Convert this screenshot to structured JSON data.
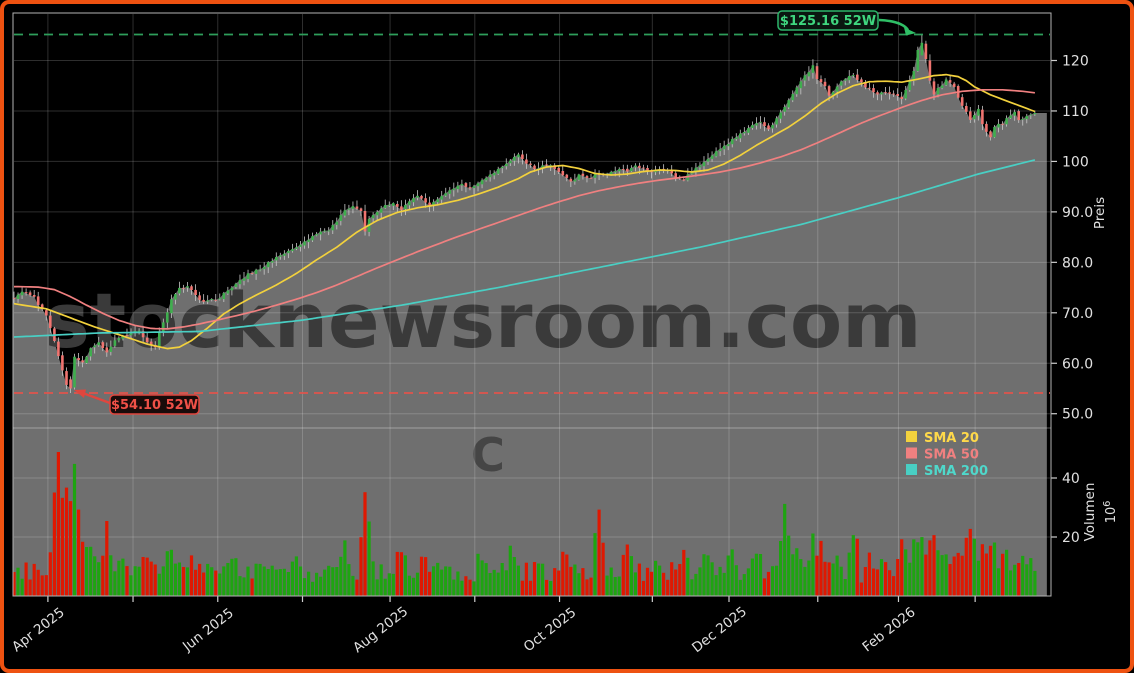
{
  "chart_data": {
    "type": "candlestick",
    "site_watermark": "stocknewsroom.com",
    "ticker_watermark": "C",
    "price_axis_label": "Preis",
    "volume_axis_label": "Volumen",
    "volume_unit_base": "10",
    "volume_unit_exponent": "6",
    "price_tick_labels": [
      "120",
      "110",
      "100",
      "90.0",
      "80.0",
      "70.0",
      "60.0",
      "50.0"
    ],
    "price_tick_values": [
      120,
      110,
      100,
      90,
      80,
      70,
      60,
      50
    ],
    "volume_tick_labels": [
      "40",
      "20"
    ],
    "volume_tick_values": [
      40,
      20
    ],
    "month_ticks": [
      {
        "i": 8.4,
        "label": "Apr 2025"
      },
      {
        "i": 29.5,
        "label": null
      },
      {
        "i": 50.5,
        "label": "Jun 2025"
      },
      {
        "i": 71.5,
        "label": null
      },
      {
        "i": 93.2,
        "label": "Aug 2025"
      },
      {
        "i": 114.2,
        "label": null
      },
      {
        "i": 135.2,
        "label": "Oct 2025"
      },
      {
        "i": 158.2,
        "label": null
      },
      {
        "i": 177.2,
        "label": "Dec 2025"
      },
      {
        "i": 199.2,
        "label": null
      },
      {
        "i": 219.2,
        "label": "Feb 2026"
      },
      {
        "i": 238.2,
        "label": null
      }
    ],
    "high_52w": 125.16,
    "low_52w": 54.1,
    "high_label": "$125.16 52W",
    "low_label": "$54.10 52W",
    "legend": [
      {
        "label": "SMA 20",
        "color": "#f2d13d",
        "text_color": "#ffd94a"
      },
      {
        "label": "SMA 50",
        "color": "#f08080",
        "text_color": "#f08080"
      },
      {
        "label": "SMA 200",
        "color": "#49cfc4",
        "text_color": "#4fd8cb"
      }
    ],
    "ylim_price": [
      47.0,
      129.3
    ],
    "ylim_volume": [
      0,
      57
    ],
    "n_candles": 254,
    "close_anchors": [
      [
        0,
        73.0
      ],
      [
        2,
        74.3
      ],
      [
        5,
        73.3
      ],
      [
        6,
        71.5
      ],
      [
        8,
        69.5
      ],
      [
        10,
        64.5
      ],
      [
        12,
        58.5
      ],
      [
        13,
        55.5
      ],
      [
        14,
        55.0
      ],
      [
        15,
        61.0
      ],
      [
        17,
        60.0
      ],
      [
        19,
        62.8
      ],
      [
        21,
        64.0
      ],
      [
        23,
        62.0
      ],
      [
        25,
        64.5
      ],
      [
        27,
        65.5
      ],
      [
        29,
        66.0
      ],
      [
        31,
        66.5
      ],
      [
        33,
        64.2
      ],
      [
        35,
        63.2
      ],
      [
        36,
        66.0
      ],
      [
        38,
        70.0
      ],
      [
        39,
        72.8
      ],
      [
        41,
        74.8
      ],
      [
        43,
        75.2
      ],
      [
        45,
        73.5
      ],
      [
        47,
        72.0
      ],
      [
        49,
        72.5
      ],
      [
        51,
        73.0
      ],
      [
        54,
        75.0
      ],
      [
        56,
        76.3
      ],
      [
        58,
        77.8
      ],
      [
        61,
        78.6
      ],
      [
        63,
        80.0
      ],
      [
        66,
        81.3
      ],
      [
        68,
        82.3
      ],
      [
        71,
        83.3
      ],
      [
        73,
        84.5
      ],
      [
        76,
        86.0
      ],
      [
        78,
        86.5
      ],
      [
        80,
        88.0
      ],
      [
        82,
        90.5
      ],
      [
        84,
        91.3
      ],
      [
        86,
        90.3
      ],
      [
        87,
        85.9
      ],
      [
        88,
        88.5
      ],
      [
        90,
        90.2
      ],
      [
        92,
        91.3
      ],
      [
        94,
        91.8
      ],
      [
        96,
        90.4
      ],
      [
        98,
        92.0
      ],
      [
        100,
        93.2
      ],
      [
        102,
        92.0
      ],
      [
        103,
        91.0
      ],
      [
        105,
        92.5
      ],
      [
        107,
        93.6
      ],
      [
        109,
        94.6
      ],
      [
        111,
        95.6
      ],
      [
        113,
        94.6
      ],
      [
        115,
        95.6
      ],
      [
        117,
        96.8
      ],
      [
        119,
        97.8
      ],
      [
        121,
        98.8
      ],
      [
        123,
        100.3
      ],
      [
        125,
        101.3
      ],
      [
        127,
        99.8
      ],
      [
        129,
        98.5
      ],
      [
        131,
        99.0
      ],
      [
        133,
        99.3
      ],
      [
        135,
        98.0
      ],
      [
        137,
        96.5
      ],
      [
        138,
        96.0
      ],
      [
        140,
        97.2
      ],
      [
        142,
        96.6
      ],
      [
        144,
        97.2
      ],
      [
        146,
        97.5
      ],
      [
        148,
        97.9
      ],
      [
        150,
        98.5
      ],
      [
        152,
        98.1
      ],
      [
        154,
        99.0
      ],
      [
        156,
        98.6
      ],
      [
        158,
        98.0
      ],
      [
        160,
        98.5
      ],
      [
        162,
        98.2
      ],
      [
        164,
        96.8
      ],
      [
        166,
        96.4
      ],
      [
        168,
        98.0
      ],
      [
        170,
        99.0
      ],
      [
        172,
        100.6
      ],
      [
        174,
        101.8
      ],
      [
        176,
        103.0
      ],
      [
        178,
        104.2
      ],
      [
        179,
        105.0
      ],
      [
        181,
        106.0
      ],
      [
        183,
        107.0
      ],
      [
        185,
        107.8
      ],
      [
        187,
        106.6
      ],
      [
        188,
        107.4
      ],
      [
        190,
        109.5
      ],
      [
        192,
        112.0
      ],
      [
        194,
        114.5
      ],
      [
        196,
        117.0
      ],
      [
        198,
        118.8
      ],
      [
        199,
        116.5
      ],
      [
        201,
        114.8
      ],
      [
        202,
        112.8
      ],
      [
        204,
        115.0
      ],
      [
        206,
        116.5
      ],
      [
        208,
        117.2
      ],
      [
        210,
        115.5
      ],
      [
        212,
        114.3
      ],
      [
        214,
        113.3
      ],
      [
        216,
        113.8
      ],
      [
        218,
        113.3
      ],
      [
        220,
        112.3
      ],
      [
        221,
        114.0
      ],
      [
        223,
        118.0
      ],
      [
        224,
        122.0
      ],
      [
        225,
        123.5
      ],
      [
        226,
        120.5
      ],
      [
        227,
        116.0
      ],
      [
        228,
        113.5
      ],
      [
        230,
        115.2
      ],
      [
        231,
        116.2
      ],
      [
        233,
        115.0
      ],
      [
        234,
        112.5
      ],
      [
        236,
        110.0
      ],
      [
        237,
        108.3
      ],
      [
        239,
        110.3
      ],
      [
        240,
        107.3
      ],
      [
        242,
        104.8
      ],
      [
        243,
        107.0
      ],
      [
        245,
        107.5
      ],
      [
        246,
        108.8
      ],
      [
        248,
        109.8
      ],
      [
        249,
        108.3
      ],
      [
        251,
        108.8
      ],
      [
        253,
        109.8
      ]
    ],
    "sma20_anchors": [
      [
        0,
        71.8
      ],
      [
        8,
        70.8
      ],
      [
        14,
        69.0
      ],
      [
        20,
        67.2
      ],
      [
        27,
        65.4
      ],
      [
        33,
        63.8
      ],
      [
        38,
        62.9
      ],
      [
        41,
        63.2
      ],
      [
        44,
        64.5
      ],
      [
        48,
        67.0
      ],
      [
        52,
        69.8
      ],
      [
        56,
        71.8
      ],
      [
        60,
        73.5
      ],
      [
        65,
        75.5
      ],
      [
        70,
        77.8
      ],
      [
        75,
        80.5
      ],
      [
        80,
        83.0
      ],
      [
        85,
        86.0
      ],
      [
        90,
        88.3
      ],
      [
        95,
        89.9
      ],
      [
        100,
        90.8
      ],
      [
        105,
        91.4
      ],
      [
        110,
        92.3
      ],
      [
        115,
        93.5
      ],
      [
        120,
        94.9
      ],
      [
        125,
        96.6
      ],
      [
        128,
        97.9
      ],
      [
        132,
        98.9
      ],
      [
        136,
        99.2
      ],
      [
        140,
        98.6
      ],
      [
        144,
        97.6
      ],
      [
        148,
        97.3
      ],
      [
        152,
        97.5
      ],
      [
        156,
        98.0
      ],
      [
        160,
        98.3
      ],
      [
        164,
        98.2
      ],
      [
        168,
        97.9
      ],
      [
        172,
        98.3
      ],
      [
        176,
        99.5
      ],
      [
        180,
        101.2
      ],
      [
        184,
        103.2
      ],
      [
        188,
        105.0
      ],
      [
        192,
        106.8
      ],
      [
        196,
        109.0
      ],
      [
        200,
        111.5
      ],
      [
        204,
        113.5
      ],
      [
        208,
        115.0
      ],
      [
        212,
        115.8
      ],
      [
        216,
        115.9
      ],
      [
        220,
        115.7
      ],
      [
        224,
        116.3
      ],
      [
        228,
        117.0
      ],
      [
        231,
        117.2
      ],
      [
        234,
        116.8
      ],
      [
        236,
        116.0
      ],
      [
        238,
        114.8
      ],
      [
        242,
        113.2
      ],
      [
        246,
        112.0
      ],
      [
        250,
        110.8
      ],
      [
        253,
        109.9
      ]
    ],
    "sma50_anchors": [
      [
        0,
        75.2
      ],
      [
        6,
        75.1
      ],
      [
        10,
        74.6
      ],
      [
        14,
        73.2
      ],
      [
        18,
        71.5
      ],
      [
        22,
        69.9
      ],
      [
        26,
        68.5
      ],
      [
        30,
        67.5
      ],
      [
        34,
        66.9
      ],
      [
        38,
        66.8
      ],
      [
        42,
        67.2
      ],
      [
        46,
        67.8
      ],
      [
        50,
        68.5
      ],
      [
        55,
        69.4
      ],
      [
        60,
        70.4
      ],
      [
        65,
        71.5
      ],
      [
        70,
        72.7
      ],
      [
        75,
        74.0
      ],
      [
        80,
        75.5
      ],
      [
        85,
        77.2
      ],
      [
        90,
        78.9
      ],
      [
        95,
        80.5
      ],
      [
        100,
        82.1
      ],
      [
        105,
        83.6
      ],
      [
        110,
        85.1
      ],
      [
        115,
        86.5
      ],
      [
        120,
        87.9
      ],
      [
        125,
        89.3
      ],
      [
        130,
        90.7
      ],
      [
        135,
        92.0
      ],
      [
        140,
        93.2
      ],
      [
        145,
        94.2
      ],
      [
        150,
        95.0
      ],
      [
        155,
        95.7
      ],
      [
        160,
        96.3
      ],
      [
        165,
        96.8
      ],
      [
        170,
        97.3
      ],
      [
        175,
        97.9
      ],
      [
        180,
        98.7
      ],
      [
        185,
        99.7
      ],
      [
        190,
        100.9
      ],
      [
        195,
        102.3
      ],
      [
        200,
        104.0
      ],
      [
        205,
        105.8
      ],
      [
        210,
        107.6
      ],
      [
        215,
        109.2
      ],
      [
        220,
        110.7
      ],
      [
        225,
        112.1
      ],
      [
        230,
        113.2
      ],
      [
        235,
        113.9
      ],
      [
        240,
        114.2
      ],
      [
        245,
        114.2
      ],
      [
        250,
        113.9
      ],
      [
        253,
        113.6
      ]
    ],
    "sma200_anchors": [
      [
        0,
        65.2
      ],
      [
        21,
        66.0
      ],
      [
        46,
        66.3
      ],
      [
        71,
        68.5
      ],
      [
        96,
        71.5
      ],
      [
        120,
        75.0
      ],
      [
        145,
        79.0
      ],
      [
        170,
        83.0
      ],
      [
        195,
        87.5
      ],
      [
        220,
        93.0
      ],
      [
        239,
        97.5
      ],
      [
        253,
        100.3
      ]
    ],
    "volume_spikes": [
      [
        10,
        10
      ],
      [
        11,
        44
      ],
      [
        12,
        22
      ],
      [
        13,
        26
      ],
      [
        14,
        14
      ],
      [
        15,
        38
      ],
      [
        16,
        16
      ],
      [
        17,
        10
      ],
      [
        19,
        8
      ],
      [
        23,
        14
      ],
      [
        27,
        8
      ],
      [
        33,
        6
      ],
      [
        38,
        8
      ],
      [
        44,
        6
      ],
      [
        54,
        6
      ],
      [
        62,
        5
      ],
      [
        70,
        6
      ],
      [
        82,
        8
      ],
      [
        87,
        28
      ],
      [
        88,
        10
      ],
      [
        96,
        8
      ],
      [
        101,
        6
      ],
      [
        116,
        6
      ],
      [
        123,
        7
      ],
      [
        130,
        6
      ],
      [
        137,
        8
      ],
      [
        145,
        22
      ],
      [
        152,
        6
      ],
      [
        160,
        5
      ],
      [
        166,
        7
      ],
      [
        172,
        6
      ],
      [
        178,
        7
      ],
      [
        184,
        8
      ],
      [
        191,
        25
      ],
      [
        194,
        8
      ],
      [
        198,
        10
      ],
      [
        200,
        9
      ],
      [
        204,
        6
      ],
      [
        208,
        16
      ],
      [
        212,
        6
      ],
      [
        216,
        5
      ],
      [
        220,
        8
      ],
      [
        223,
        10
      ],
      [
        224,
        12
      ],
      [
        225,
        14
      ],
      [
        227,
        12
      ],
      [
        228,
        10
      ],
      [
        231,
        8
      ],
      [
        234,
        7
      ],
      [
        237,
        18
      ],
      [
        239,
        6
      ],
      [
        240,
        8
      ],
      [
        242,
        10
      ],
      [
        243,
        7
      ],
      [
        246,
        6
      ],
      [
        249,
        5
      ],
      [
        251,
        4
      ]
    ]
  },
  "colors": {
    "background": "#000000",
    "frame_border": "#ee5211",
    "panel_fill": "#6f6f6f",
    "grid": "rgba(255,255,255,0.18)",
    "spine": "#b5b5b5",
    "axis_text": "#e0e0e0",
    "candle_up": "#3fae4e",
    "candle_down": "#f07470",
    "wick": "#c9c9c9",
    "volume_up": "#1ea411",
    "volume_down": "#df1801",
    "high_line": "#2e9e5b",
    "high_text": "#3fd67f",
    "low_line": "#e0544c",
    "low_text": "#ef4f45",
    "watermark": "#3a3a3a"
  }
}
